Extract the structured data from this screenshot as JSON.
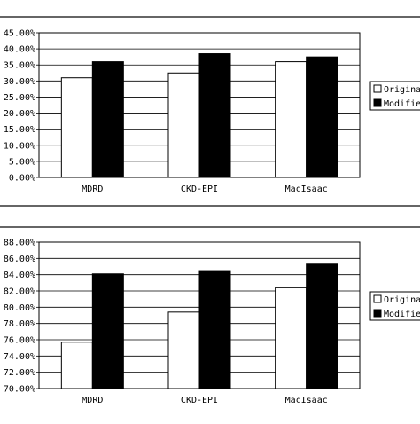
{
  "chart_data": [
    {
      "type": "bar",
      "categories": [
        "MDRD",
        "CKD-EPI",
        "MacIsaac"
      ],
      "series": [
        {
          "name": "Original",
          "color": "#ffffff",
          "values": [
            31.0,
            32.5,
            36.0
          ]
        },
        {
          "name": "Modified",
          "color": "#000000",
          "values": [
            36.0,
            38.5,
            37.5
          ]
        }
      ],
      "ylim": [
        0,
        45
      ],
      "yticks": [
        "0.00%",
        "5.00%",
        "10.00%",
        "15.00%",
        "20.00%",
        "25.00%",
        "30.00%",
        "35.00%",
        "40.00%",
        "45.00%"
      ],
      "ytick_values": [
        0,
        5,
        10,
        15,
        20,
        25,
        30,
        35,
        40,
        45
      ],
      "legend": [
        "Origina",
        "Modifie"
      ],
      "grid": true,
      "legend_position": "right"
    },
    {
      "type": "bar",
      "categories": [
        "MDRD",
        "CKD-EPI",
        "MacIsaac"
      ],
      "series": [
        {
          "name": "Original",
          "color": "#ffffff",
          "values": [
            75.7,
            79.4,
            82.4
          ]
        },
        {
          "name": "Modified",
          "color": "#000000",
          "values": [
            84.1,
            84.5,
            85.3
          ]
        }
      ],
      "ylim": [
        70,
        88
      ],
      "yticks": [
        "70.00%",
        "72.00%",
        "74.00%",
        "76.00%",
        "78.00%",
        "80.00%",
        "82.00%",
        "84.00%",
        "86.00%",
        "88.00%"
      ],
      "ytick_values": [
        70,
        72,
        74,
        76,
        78,
        80,
        82,
        84,
        86,
        88
      ],
      "legend": [
        "Origina",
        "Modifie"
      ],
      "grid": true,
      "legend_position": "right"
    }
  ]
}
